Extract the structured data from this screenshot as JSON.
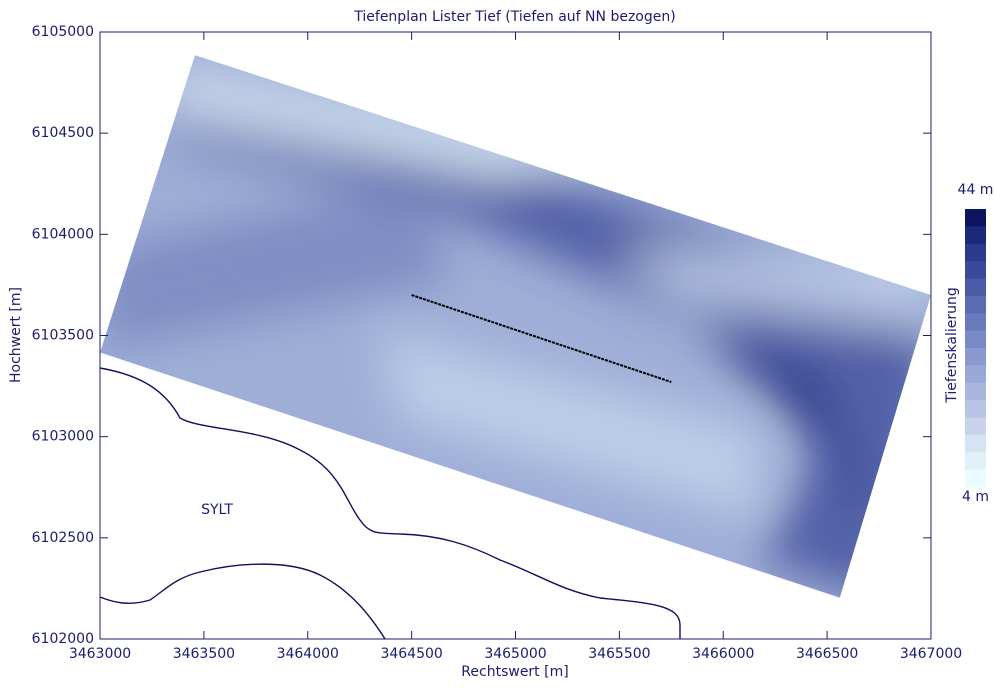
{
  "chart_data": {
    "type": "map",
    "title": "Tiefenplan Lister Tief (Tiefen auf NN bezogen)",
    "x_label": "Rechtswert [m]",
    "y_label": "Hochwert [m]",
    "annotation": "SYLT",
    "xlim": [
      3463000,
      3467000
    ],
    "xticks": [
      3463000,
      3463500,
      3464000,
      3464500,
      3465000,
      3465500,
      3466000,
      3466500,
      3467000
    ],
    "ylim": [
      6102000,
      6105000
    ],
    "yticks": [
      6102000,
      6102500,
      6103000,
      6103500,
      6104000,
      6104500,
      6105000
    ],
    "survey_area": {
      "color": "#9eaed6",
      "x": [
        3463457,
        3467000,
        3466561,
        3463000
      ],
      "y": [
        6104886,
        6103700,
        6102204,
        6103416
      ]
    },
    "profile": {
      "color": "#000000",
      "x": [
        3464500,
        3465750
      ],
      "y": [
        6103700,
        6103270
      ]
    },
    "colorbar": {
      "label": "Tiefenskalierung",
      "ticks": [
        {
          "value": 44,
          "label": "44 m"
        },
        {
          "value": 4,
          "label": "4 m"
        }
      ],
      "colors": [
        "#0c1460",
        "#1c2878",
        "#2b3a8a",
        "#3a4a98",
        "#4a5ba6",
        "#5a6bb2",
        "#6a7bbd",
        "#7a8ac6",
        "#8a99cf",
        "#9aa8d7",
        "#aab6de",
        "#bac4e6",
        "#c9d3ec",
        "#d6e3f2",
        "#e2f0f7",
        "#eafcff"
      ]
    }
  }
}
